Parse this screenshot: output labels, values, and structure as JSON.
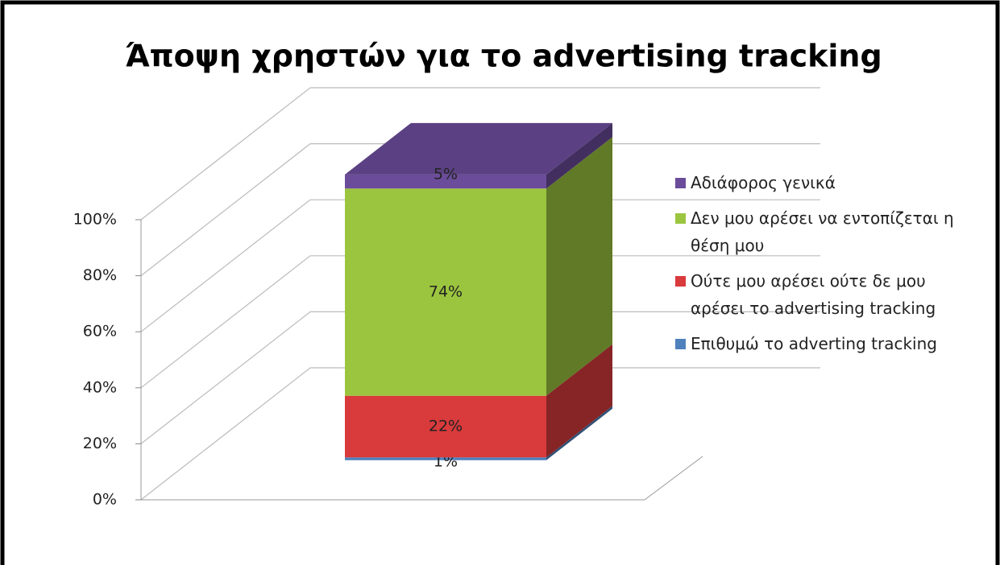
{
  "chart_data": {
    "type": "bar",
    "stacked": true,
    "title": "Άποψη χρηστών για το advertising tracking",
    "categories": [
      null
    ],
    "series": [
      {
        "name": "Επιθυμώ το adverting tracking",
        "color": "#4f81bd",
        "values": [
          1
        ],
        "value_labels": [
          "1%"
        ]
      },
      {
        "name": "Ούτε μου αρέσει ούτε δε μου αρέσει το advertising tracking",
        "color": "#d93a3b",
        "values": [
          22
        ],
        "value_labels": [
          "22%"
        ]
      },
      {
        "name": "Δεν μου αρέσει να εντοπίζεται η θέση μου",
        "color": "#9cc53f",
        "values": [
          74
        ],
        "value_labels": [
          "74%"
        ]
      },
      {
        "name": "Αδιάφορος γενικά",
        "color": "#6b4c9a",
        "values": [
          5
        ],
        "value_labels": [
          "5%"
        ]
      }
    ],
    "ylim": [
      0,
      100
    ],
    "yticks": [
      {
        "value": 0,
        "label": "0%"
      },
      {
        "value": 20,
        "label": "20%"
      },
      {
        "value": 40,
        "label": "40%"
      },
      {
        "value": 60,
        "label": "60%"
      },
      {
        "value": 80,
        "label": "80%"
      },
      {
        "value": 100,
        "label": "100%"
      }
    ],
    "grid": true,
    "legend": "right"
  }
}
